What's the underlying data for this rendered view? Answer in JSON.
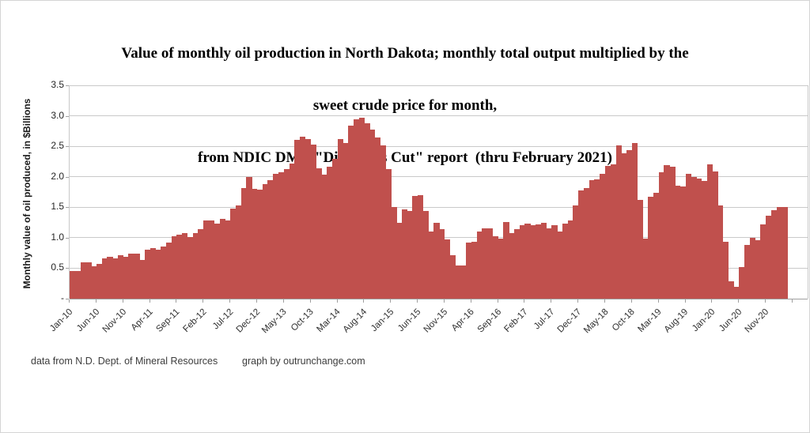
{
  "title": {
    "line1": "Value of monthly oil production in North Dakota; monthly total output multiplied by the",
    "line2": "sweet crude price for month,",
    "line3": "from NDIC DMR \"Director's Cut\" report  (thru February 2021)"
  },
  "footer": {
    "source": "data from N.D. Dept. of Mineral Resources",
    "credit": "graph by outrunchange.com"
  },
  "chart_data": {
    "type": "bar",
    "title": "Value of monthly oil production in North Dakota; monthly total output multiplied by the sweet crude price for month, from NDIC DMR \"Director's Cut\" report (thru February 2021)",
    "xlabel": "",
    "ylabel": "Monthly value of oil produced, in $Billions",
    "ylim": [
      0,
      3.5
    ],
    "grid": "horizontal",
    "legend": "none",
    "bar_color": "#C0504D",
    "start_month": "Jan-10",
    "end_month": "Feb-21",
    "x_tick_labels": [
      "Jan-10",
      "Jun-10",
      "Nov-10",
      "Apr-11",
      "Sep-11",
      "Feb-12",
      "Jul-12",
      "Dec-12",
      "May-13",
      "Oct-13",
      "Mar-14",
      "Aug-14",
      "Jan-15",
      "Jun-15",
      "Nov-15",
      "Apr-16",
      "Sep-16",
      "Feb-17",
      "Jul-17",
      "Dec-17",
      "May-18",
      "Oct-18",
      "Mar-19",
      "Aug-19",
      "Jan-20",
      "Jun-20",
      "Nov-20"
    ],
    "y_tick_labels": [
      "3.5",
      "3.0",
      "2.5",
      "2.0",
      "1.5",
      "1.0",
      "0.5",
      "-"
    ],
    "values": [
      0.46,
      0.46,
      0.6,
      0.6,
      0.53,
      0.57,
      0.66,
      0.69,
      0.66,
      0.71,
      0.69,
      0.74,
      0.74,
      0.64,
      0.8,
      0.83,
      0.81,
      0.86,
      0.92,
      1.03,
      1.05,
      1.07,
      1.01,
      1.07,
      1.14,
      1.29,
      1.29,
      1.23,
      1.31,
      1.29,
      1.48,
      1.53,
      1.81,
      2.0,
      1.8,
      1.79,
      1.88,
      1.94,
      2.05,
      2.07,
      2.13,
      2.22,
      2.6,
      2.66,
      2.62,
      2.53,
      2.14,
      2.03,
      2.16,
      2.29,
      2.62,
      2.55,
      2.84,
      2.94,
      2.97,
      2.88,
      2.77,
      2.64,
      2.51,
      2.13,
      1.51,
      1.25,
      1.46,
      1.44,
      1.68,
      1.7,
      1.44,
      1.1,
      1.25,
      1.14,
      0.97,
      0.71,
      0.55,
      0.54,
      0.92,
      0.94,
      1.1,
      1.16,
      1.15,
      1.03,
      0.98,
      1.26,
      1.07,
      1.14,
      1.2,
      1.23,
      1.2,
      1.22,
      1.24,
      1.16,
      1.2,
      1.1,
      1.23,
      1.29,
      1.53,
      1.77,
      1.81,
      1.94,
      1.96,
      2.05,
      2.18,
      2.2,
      2.52,
      2.38,
      2.44,
      2.55,
      1.62,
      0.98,
      1.67,
      1.74,
      2.08,
      2.19,
      2.17,
      1.86,
      1.84,
      2.05,
      2.0,
      1.97,
      1.93,
      2.2,
      2.09,
      1.53,
      0.94,
      0.28,
      0.19,
      0.52,
      0.88,
      1.0,
      0.96,
      1.22,
      1.36,
      1.45,
      1.5,
      1.5
    ]
  }
}
